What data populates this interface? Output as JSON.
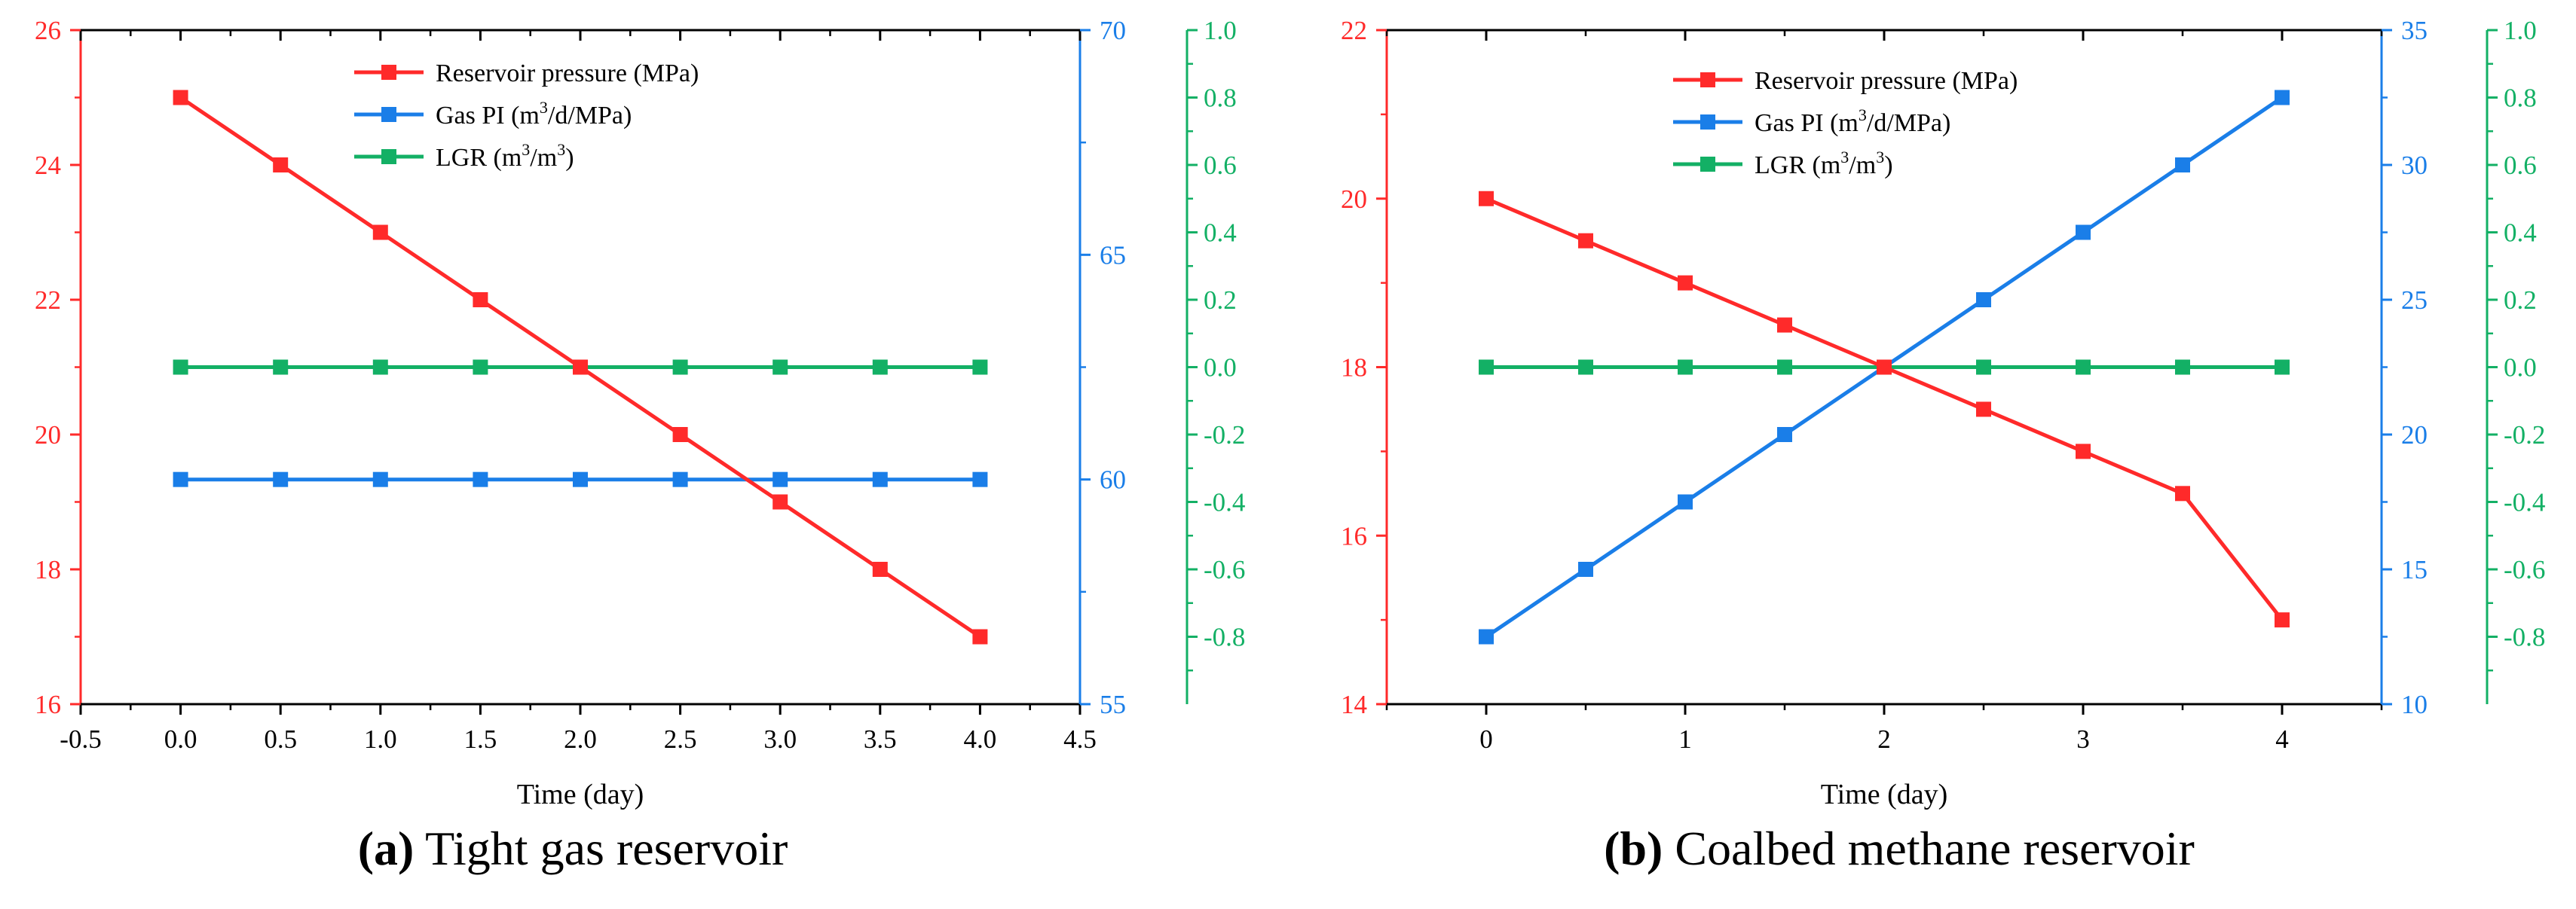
{
  "colors": {
    "pressure": "#ff2a2a",
    "gas_pi": "#1a7ee8",
    "lgr": "#13b065",
    "axis": "#000000"
  },
  "legend_labels": {
    "pressure": "Reservoir pressure (MPa)",
    "gas_pi_prefix": "Gas PI (m",
    "gas_pi_sup": "3",
    "gas_pi_suffix": "/d/MPa)",
    "lgr_prefix": "LGR (m",
    "lgr_sup1": "3",
    "lgr_mid": "/m",
    "lgr_sup2": "3",
    "lgr_suffix": ")"
  },
  "chart_data": [
    {
      "type": "line",
      "id": "a",
      "caption_label": "(a)",
      "caption_text": "Tight gas reservoir",
      "xlabel": "Time (day)",
      "xlim": [
        -0.5,
        4.5
      ],
      "x_ticks": [
        -0.5,
        0.0,
        0.5,
        1.0,
        1.5,
        2.0,
        2.5,
        3.0,
        3.5,
        4.0,
        4.5
      ],
      "x_tick_labels": [
        "-0.5",
        "0.0",
        "0.5",
        "1.0",
        "1.5",
        "2.0",
        "2.5",
        "3.0",
        "3.5",
        "4.0",
        "4.5"
      ],
      "x": [
        0.0,
        0.5,
        1.0,
        1.5,
        2.0,
        2.5,
        3.0,
        3.5,
        4.0
      ],
      "axes": {
        "pressure": {
          "lim": [
            16,
            26
          ],
          "ticks": [
            16,
            18,
            20,
            22,
            24,
            26
          ],
          "labels": [
            "16",
            "18",
            "20",
            "22",
            "24",
            "26"
          ]
        },
        "gas_pi": {
          "lim": [
            55,
            70
          ],
          "ticks": [
            55,
            60,
            65,
            70
          ],
          "labels": [
            "55",
            "60",
            "65",
            "70"
          ]
        },
        "lgr": {
          "lim": [
            -1.0,
            1.0
          ],
          "ticks": [
            -0.8,
            -0.6,
            -0.4,
            -0.2,
            0.0,
            0.2,
            0.4,
            0.6,
            0.8,
            1.0
          ],
          "labels": [
            "-0.8",
            "-0.6",
            "-0.4",
            "-0.2",
            "0.0",
            "0.2",
            "0.4",
            "0.6",
            "0.8",
            "1.0"
          ]
        }
      },
      "series": [
        {
          "name": "Reservoir pressure (MPa)",
          "axis": "pressure",
          "values": [
            25,
            24,
            23,
            22,
            21,
            20,
            19,
            18,
            17
          ]
        },
        {
          "name": "Gas PI (m3/d/MPa)",
          "axis": "gas_pi",
          "values": [
            60,
            60,
            60,
            60,
            60,
            60,
            60,
            60,
            60
          ]
        },
        {
          "name": "LGR (m3/m3)",
          "axis": "lgr",
          "values": [
            0,
            0,
            0,
            0,
            0,
            0,
            0,
            0,
            0
          ]
        }
      ]
    },
    {
      "type": "line",
      "id": "b",
      "caption_label": "(b)",
      "caption_text": "Coalbed methane reservoir",
      "xlabel": "Time (day)",
      "xlim": [
        -0.5,
        4.5
      ],
      "x_ticks": [
        0,
        1,
        2,
        3,
        4
      ],
      "x_tick_labels": [
        "0",
        "1",
        "2",
        "3",
        "4"
      ],
      "x": [
        0.0,
        0.5,
        1.0,
        1.5,
        2.0,
        2.5,
        3.0,
        3.5,
        4.0
      ],
      "axes": {
        "pressure": {
          "lim": [
            14,
            22
          ],
          "ticks": [
            14,
            16,
            18,
            20,
            22
          ],
          "labels": [
            "14",
            "16",
            "18",
            "20",
            "22"
          ]
        },
        "gas_pi": {
          "lim": [
            10,
            35
          ],
          "ticks": [
            10,
            15,
            20,
            25,
            30,
            35
          ],
          "labels": [
            "10",
            "15",
            "20",
            "25",
            "30",
            "35"
          ]
        },
        "lgr": {
          "lim": [
            -1.0,
            1.0
          ],
          "ticks": [
            -0.8,
            -0.6,
            -0.4,
            -0.2,
            0.0,
            0.2,
            0.4,
            0.6,
            0.8,
            1.0
          ],
          "labels": [
            "-0.8",
            "-0.6",
            "-0.4",
            "-0.2",
            "0.0",
            "0.2",
            "0.4",
            "0.6",
            "0.8",
            "1.0"
          ]
        }
      },
      "series": [
        {
          "name": "Reservoir pressure (MPa)",
          "axis": "pressure",
          "values": [
            20,
            19.5,
            19,
            18.5,
            18,
            17.5,
            17,
            16.5,
            15
          ]
        },
        {
          "name": "Gas PI (m3/d/MPa)",
          "axis": "gas_pi",
          "values": [
            12.5,
            15,
            17.5,
            20,
            22.5,
            25,
            27.5,
            30,
            32.5
          ]
        },
        {
          "name": "LGR (m3/m3)",
          "axis": "lgr",
          "values": [
            0,
            0,
            0,
            0,
            0,
            0,
            0,
            0,
            0
          ]
        }
      ]
    }
  ]
}
